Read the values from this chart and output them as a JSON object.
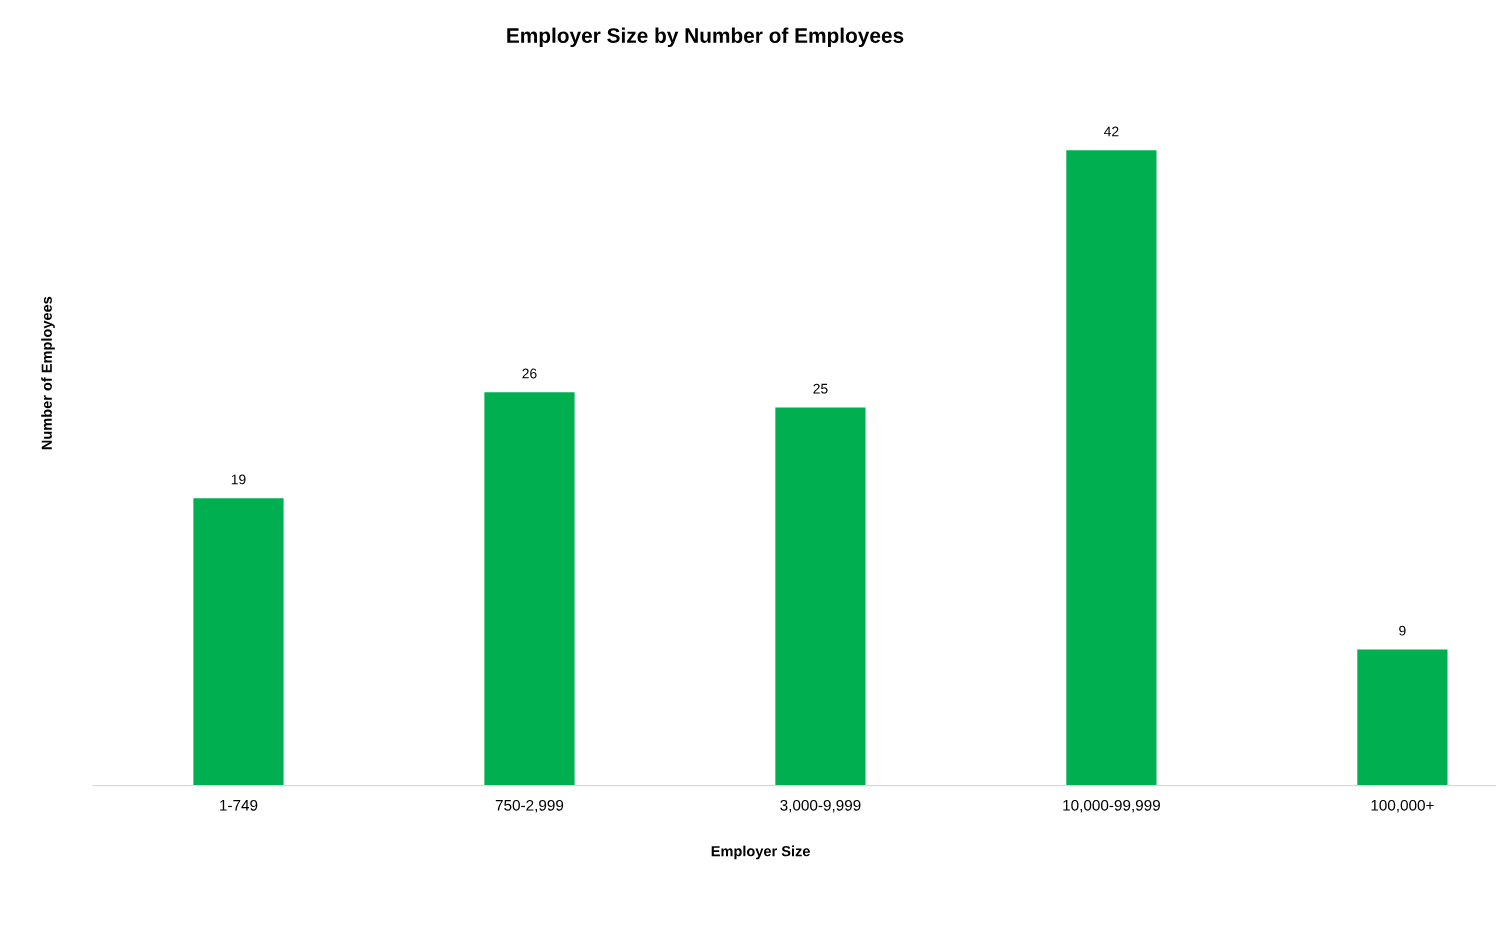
{
  "chart_data": {
    "type": "bar",
    "title": "Employer Size by Number of Employees",
    "xlabel": "Employer Size",
    "ylabel": "Number of Employees",
    "categories": [
      "1-749",
      "750-2,999",
      "3,000-9,999",
      "10,000-99,999",
      "100,000+"
    ],
    "values": [
      19,
      26,
      25,
      42,
      9
    ],
    "color": "#00b050",
    "data_labels": true,
    "tick_labels": "x",
    "grid": false
  }
}
